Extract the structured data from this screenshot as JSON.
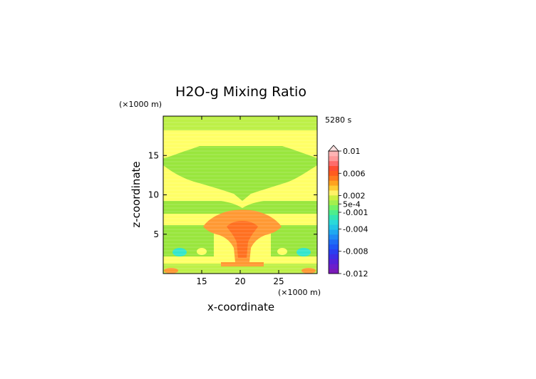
{
  "chart_data": {
    "type": "heatmap",
    "title": "H2O-g Mixing Ratio",
    "time_label": "5280 s",
    "xlabel": "x-coordinate",
    "ylabel": "z-coordinate",
    "x_unit": "(×1000 m)",
    "y_unit": "(×1000 m)",
    "x_ticks": [
      15,
      20,
      25
    ],
    "y_ticks": [
      5,
      10,
      15
    ],
    "x_tick_labels": [
      "15",
      "20",
      "25"
    ],
    "y_tick_labels": [
      "5",
      "10",
      "15"
    ],
    "xlim": [
      10,
      30
    ],
    "ylim": [
      0,
      20
    ],
    "colorbar_labels": [
      "0.01",
      "0.006",
      "0.002",
      "5e-4",
      "-0.001",
      "-0.004",
      "-0.008",
      "-0.012"
    ],
    "colorbar_label_values": [
      0.01,
      0.006,
      0.002,
      0.0005,
      -0.001,
      -0.004,
      -0.008,
      -0.012
    ],
    "colorbar_range": [
      -0.012,
      0.01
    ],
    "colorbar_extend": "max",
    "colors": {
      "yellow": "#ffff66",
      "light_green": "#bdf047",
      "green": "#99e63d",
      "orange": "#ff9933",
      "dark_orange": "#ff7020",
      "cyan": "#33e6cc",
      "background": "#ffffff",
      "axis": "#000000"
    },
    "colorbar_colors": [
      "#7a1ab8",
      "#6b1ecc",
      "#5522d9",
      "#3d2ee6",
      "#2a3ef0",
      "#1f55f5",
      "#1e6cf5",
      "#1f8af5",
      "#1fa8f0",
      "#22c4e6",
      "#2ad9d9",
      "#33e6b3",
      "#4dee8c",
      "#73f266",
      "#a3ef4d",
      "#ccf040",
      "#fff266",
      "#ffcc33",
      "#ffa31f",
      "#ff7a1f",
      "#ff5c1f",
      "#ff4d33",
      "#ff6b6b",
      "#ff9999",
      "#ffb3b3"
    ]
  }
}
